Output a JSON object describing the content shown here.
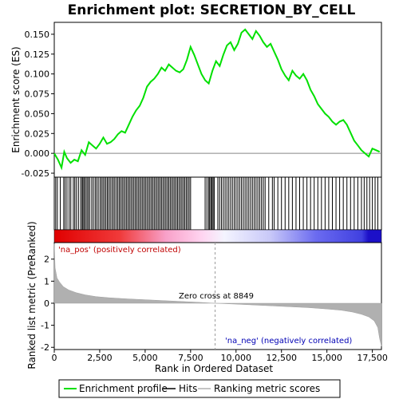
{
  "chart_data": {
    "type": "line",
    "title": "Enrichment plot: SECRETION_BY_CELL",
    "xlabel": "Rank in Ordered Dataset",
    "ylabel_top": "Enrichment score (ES)",
    "ylabel_bottom": "Ranked list metric (PreRanked)",
    "xlim": [
      0,
      18000
    ],
    "x_ticks": [
      0,
      2500,
      5000,
      7500,
      10000,
      12500,
      15000,
      17500
    ],
    "x_tick_labels": [
      "0",
      "2,500",
      "5,000",
      "7,500",
      "10,000",
      "12,500",
      "15,000",
      "17,500"
    ],
    "es_ylim": [
      -0.03,
      0.165
    ],
    "es_ticks": [
      -0.025,
      0.0,
      0.025,
      0.05,
      0.075,
      0.1,
      0.125,
      0.15
    ],
    "es_tick_labels": [
      "-0.025",
      "0.000",
      "0.025",
      "0.050",
      "0.075",
      "0.100",
      "0.125",
      "0.150"
    ],
    "metric_ylim": [
      -2.1,
      2.75
    ],
    "metric_ticks": [
      -2,
      -1,
      0,
      1,
      2
    ],
    "metric_tick_labels": [
      "-2",
      "-1",
      "0",
      "1",
      "2"
    ],
    "series": [
      {
        "name": "Enrichment profile",
        "color": "#00e000",
        "x": [
          0,
          200,
          400,
          550,
          700,
          900,
          1100,
          1300,
          1500,
          1700,
          1900,
          2100,
          2300,
          2500,
          2700,
          2900,
          3100,
          3300,
          3500,
          3700,
          3900,
          4100,
          4300,
          4500,
          4700,
          4900,
          5100,
          5300,
          5500,
          5700,
          5900,
          6100,
          6300,
          6500,
          6700,
          6900,
          7100,
          7300,
          7500,
          7700,
          7900,
          8100,
          8300,
          8500,
          8700,
          8900,
          9100,
          9300,
          9500,
          9700,
          9900,
          10100,
          10300,
          10500,
          10700,
          10900,
          11100,
          11300,
          11500,
          11700,
          11900,
          12100,
          12300,
          12500,
          12700,
          12900,
          13100,
          13300,
          13500,
          13700,
          13900,
          14100,
          14300,
          14500,
          14700,
          14900,
          15100,
          15300,
          15500,
          15700,
          15900,
          16100,
          16300,
          16500,
          16700,
          16900,
          17100,
          17300,
          17500,
          17700,
          17900
        ],
        "y": [
          0.0,
          -0.008,
          -0.018,
          0.002,
          -0.006,
          -0.012,
          -0.008,
          -0.01,
          0.004,
          -0.002,
          0.014,
          0.01,
          0.006,
          0.012,
          0.02,
          0.012,
          0.014,
          0.018,
          0.024,
          0.028,
          0.026,
          0.036,
          0.046,
          0.054,
          0.06,
          0.07,
          0.084,
          0.09,
          0.094,
          0.1,
          0.108,
          0.104,
          0.112,
          0.108,
          0.104,
          0.102,
          0.106,
          0.118,
          0.134,
          0.124,
          0.112,
          0.1,
          0.092,
          0.088,
          0.104,
          0.116,
          0.11,
          0.124,
          0.136,
          0.14,
          0.13,
          0.138,
          0.152,
          0.156,
          0.15,
          0.144,
          0.154,
          0.148,
          0.14,
          0.134,
          0.138,
          0.128,
          0.118,
          0.106,
          0.098,
          0.092,
          0.104,
          0.098,
          0.094,
          0.1,
          0.092,
          0.08,
          0.072,
          0.062,
          0.056,
          0.05,
          0.046,
          0.04,
          0.036,
          0.04,
          0.042,
          0.036,
          0.026,
          0.016,
          0.01,
          0.004,
          0.0,
          -0.004,
          0.006,
          0.004,
          0.002
        ]
      },
      {
        "name": "Hits",
        "color": "#000000",
        "positions": [
          80,
          170,
          330,
          520,
          600,
          700,
          820,
          910,
          1050,
          1130,
          1220,
          1330,
          1450,
          1530,
          1580,
          1650,
          1720,
          1800,
          1870,
          1950,
          2060,
          2150,
          2250,
          2330,
          2420,
          2520,
          2600,
          2680,
          2760,
          2840,
          2920,
          3000,
          3080,
          3170,
          3250,
          3330,
          3420,
          3500,
          3580,
          3660,
          3740,
          3820,
          3900,
          3980,
          4060,
          4140,
          4220,
          4300,
          4380,
          4460,
          4540,
          4620,
          4700,
          4780,
          4860,
          4940,
          5020,
          5100,
          5180,
          5260,
          5340,
          5420,
          5500,
          5580,
          5660,
          5740,
          5820,
          5900,
          5980,
          6060,
          6140,
          6220,
          6300,
          6380,
          6460,
          6540,
          6620,
          6700,
          6780,
          6860,
          6940,
          7020,
          7100,
          7180,
          7260,
          7340,
          7420,
          7500,
          8300,
          8400,
          8500,
          8550,
          8620,
          8680,
          8740,
          8800,
          9000,
          9100,
          9200,
          9300,
          9400,
          9500,
          9600,
          9700,
          9800,
          9900,
          10000,
          10100,
          10200,
          10300,
          10400,
          10500,
          10600,
          10700,
          10800,
          10900,
          11000,
          11100,
          11200,
          11300,
          11400,
          11500,
          11600,
          11800,
          12000,
          12100,
          12300,
          12500,
          12700,
          12900,
          13100,
          13300,
          13500,
          13700,
          13900,
          14100,
          14300,
          14500,
          14700,
          14900,
          15100,
          15300,
          15500,
          15700,
          15900,
          16100,
          16300,
          16500,
          16700,
          16900,
          17050,
          17200,
          17350,
          17500,
          17650,
          17800
        ]
      },
      {
        "name": "Ranking metric scores",
        "color": "#b0b0b0",
        "x": [
          0,
          50,
          150,
          300,
          500,
          800,
          1200,
          1700,
          2300,
          3000,
          4000,
          5000,
          6000,
          7000,
          8000,
          8849,
          10000,
          11000,
          12000,
          13000,
          14000,
          15000,
          15800,
          16400,
          16900,
          17300,
          17600,
          17800,
          17900,
          18000
        ],
        "y": [
          2.7,
          1.6,
          1.15,
          0.95,
          0.75,
          0.6,
          0.48,
          0.38,
          0.3,
          0.25,
          0.2,
          0.16,
          0.12,
          0.08,
          0.04,
          0.0,
          -0.04,
          -0.08,
          -0.12,
          -0.16,
          -0.2,
          -0.26,
          -0.32,
          -0.4,
          -0.5,
          -0.62,
          -0.8,
          -1.1,
          -1.6,
          -1.95
        ]
      }
    ],
    "annotations": {
      "pos_label": "'na_pos' (positively correlated)",
      "neg_label": "'na_neg' (negatively correlated)",
      "zero_cross": "Zero cross at 8849",
      "zero_cross_rank": 8849
    },
    "legend": {
      "placement": "bottom",
      "items": [
        "Enrichment profile",
        "Hits",
        "Ranking metric scores"
      ]
    }
  }
}
